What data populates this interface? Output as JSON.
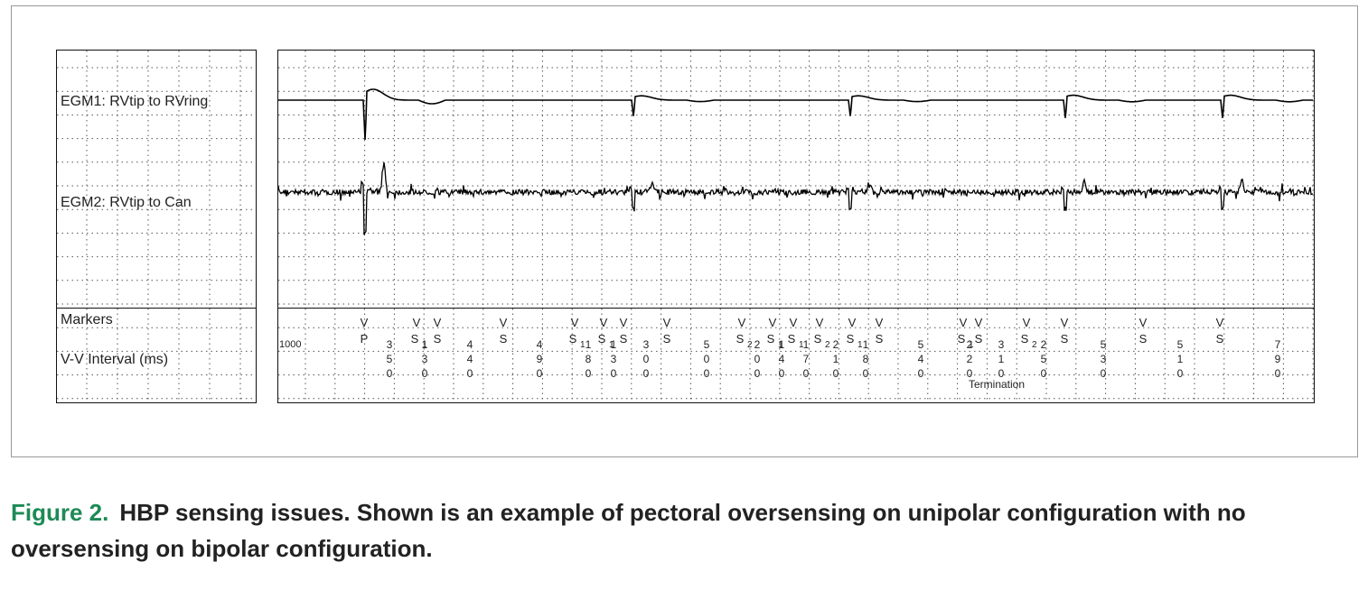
{
  "figure": {
    "traces": [
      {
        "label": "EGM1: RVtip to RVring"
      },
      {
        "label": "EGM2: RVtip to Can"
      }
    ],
    "marker_row_label": "Markers",
    "interval_row_label": "V-V Interval (ms)",
    "initial_interval": 1000,
    "markers": [
      {
        "top": "V",
        "bottom": "P"
      },
      {
        "top": "V",
        "bottom": "S",
        "sub": "1"
      },
      {
        "top": "V",
        "bottom": "S"
      },
      {
        "top": "V",
        "bottom": "S"
      },
      {
        "top": "V",
        "bottom": "S",
        "sub": "1"
      },
      {
        "top": "V",
        "bottom": "S",
        "sub": "1"
      },
      {
        "top": "V",
        "bottom": "S"
      },
      {
        "top": "V",
        "bottom": "S"
      },
      {
        "top": "V",
        "bottom": "S",
        "sub": "2"
      },
      {
        "top": "V",
        "bottom": "S",
        "sub": "1"
      },
      {
        "top": "V",
        "bottom": "S",
        "sub": "1"
      },
      {
        "top": "V",
        "bottom": "S",
        "sub": "2"
      },
      {
        "top": "V",
        "bottom": "S",
        "sub": "1"
      },
      {
        "top": "V",
        "bottom": "S"
      },
      {
        "top": "V",
        "bottom": "S",
        "sub": "1"
      },
      {
        "top": "V",
        "bottom": "S"
      },
      {
        "top": "V",
        "bottom": "S",
        "sub": "2"
      },
      {
        "top": "V",
        "bottom": "S"
      },
      {
        "top": "V",
        "bottom": "S"
      },
      {
        "top": "V",
        "bottom": "S"
      }
    ],
    "intervals": [
      350,
      130,
      440,
      490,
      180,
      130,
      300,
      500,
      200,
      140,
      170,
      210,
      180,
      540,
      220,
      310,
      250,
      530,
      510,
      790
    ],
    "annotation": "Termination"
  },
  "caption": {
    "label": "Figure 2.",
    "text": "HBP sensing issues. Shown is an example of pectoral oversensing on unipolar configuration with no oversensing on bipolar configuration."
  }
}
